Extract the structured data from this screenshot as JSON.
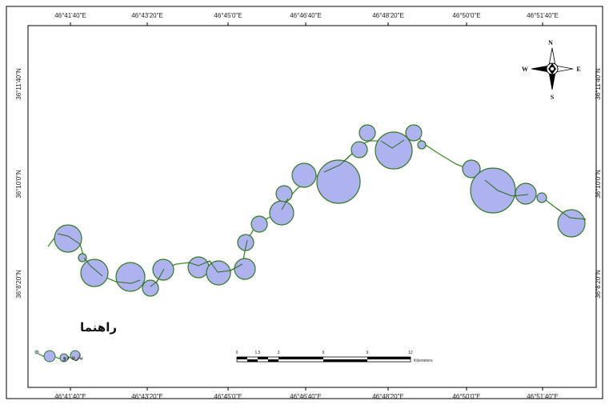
{
  "map": {
    "top_lon_labels": [
      "46°41'40\"E",
      "46°43'20\"E",
      "46°45'0\"E",
      "46°46'40\"E",
      "46°48'20\"E",
      "46°50'0\"E",
      "46°51'40\"E"
    ],
    "bottom_lon_labels": [
      "46°41'40\"E",
      "46°43'20\"E",
      "46°45'0\"E",
      "46°46'40\"E",
      "46°48'20\"E",
      "46°50'0\"E",
      "46°51'40\"E"
    ],
    "left_lat_labels": [
      "36°11'40\"N",
      "36°10'0\"N",
      "36°8'20\"N"
    ],
    "right_lat_labels": [
      "36°11'40\"N",
      "36°10'0\"N",
      "36°8'20\"N"
    ]
  },
  "north_arrow": {
    "icon": "compass-rose-icon",
    "n": "N",
    "s": "S",
    "e": "E",
    "w": "W"
  },
  "legend": {
    "title": "راهنما",
    "item_label": "بازه دو",
    "item_icon": "buffer-circles-icon",
    "colors": {
      "fill": "#aeb2ee",
      "outline": "#2f7a22",
      "route": "#3f8a2a"
    }
  },
  "scale_bar": {
    "tick_labels": [
      "0",
      "1.5",
      "3",
      "6",
      "9",
      "12"
    ],
    "unit": "Kilometers"
  }
}
